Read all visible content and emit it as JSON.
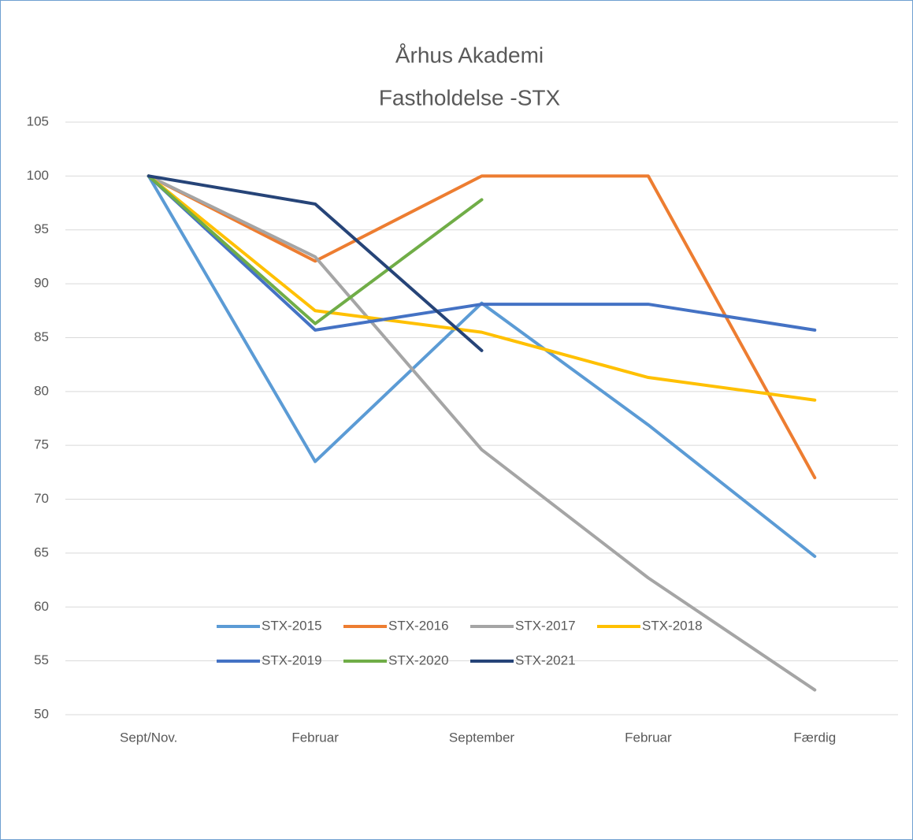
{
  "chart_data": {
    "type": "line",
    "title": "Århus Akademi",
    "subtitle": "Fastholdelse -STX",
    "categories": [
      "Sept/Nov.",
      "Februar",
      "September",
      "Februar",
      "Færdig"
    ],
    "series": [
      {
        "name": "STX-2015",
        "color": "#5b9bd5",
        "values": [
          100,
          73.5,
          88.2,
          76.9,
          64.7
        ]
      },
      {
        "name": "STX-2016",
        "color": "#ed7d31",
        "values": [
          100,
          92.1,
          100,
          100,
          72
        ]
      },
      {
        "name": "STX-2017",
        "color": "#a5a5a5",
        "values": [
          100,
          92.5,
          74.6,
          62.7,
          52.3
        ]
      },
      {
        "name": "STX-2018",
        "color": "#ffc000",
        "values": [
          100,
          87.5,
          85.5,
          81.3,
          79.2
        ]
      },
      {
        "name": "STX-2019",
        "color": "#4472c4",
        "values": [
          100,
          85.7,
          88.1,
          88.1,
          85.7
        ]
      },
      {
        "name": "STX-2020",
        "color": "#70ad47",
        "values": [
          100,
          86.3,
          97.8,
          null,
          null
        ]
      },
      {
        "name": "STX-2021",
        "color": "#264478",
        "values": [
          100,
          97.4,
          83.8,
          null,
          null
        ]
      }
    ],
    "ylim": [
      50,
      105
    ],
    "yticks": [
      50,
      55,
      60,
      65,
      70,
      75,
      80,
      85,
      90,
      95,
      100,
      105
    ],
    "grid": true,
    "legend": "bottom"
  }
}
